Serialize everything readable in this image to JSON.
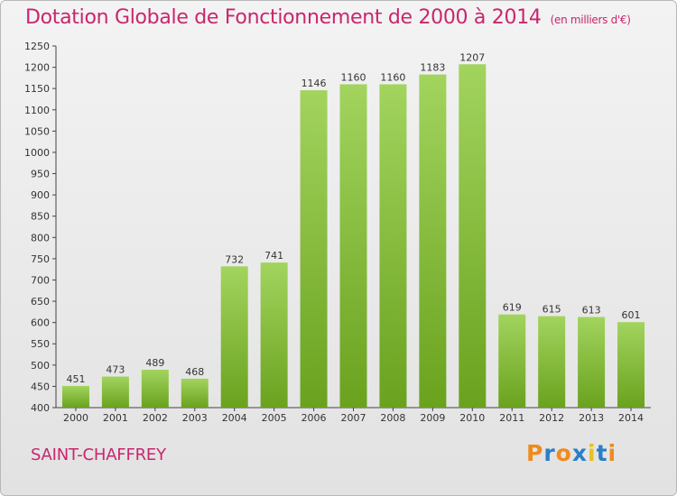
{
  "header": {
    "title": "Dotation Globale de Fonctionnement de 2000 à 2014",
    "unit": "(en milliers d'€)"
  },
  "footer": {
    "place": "SAINT-CHAFFREY",
    "brand_letters": [
      "P",
      "r",
      "o",
      "x",
      "i",
      "t",
      "i"
    ]
  },
  "colors": {
    "title": "#c8266e",
    "bar_light": "#a2d45e",
    "bar_dark": "#6aa21e",
    "brand_letters": [
      "#f08a1c",
      "#2a7fc6",
      "#f08a1c",
      "#2a7fc6",
      "#e8c21c",
      "#2a7fc6",
      "#f08a1c"
    ]
  },
  "chart_data": {
    "type": "bar",
    "title": "Dotation Globale de Fonctionnement de 2000 à 2014",
    "subtitle": "(en milliers d'€)",
    "categories": [
      "2000",
      "2001",
      "2002",
      "2003",
      "2004",
      "2005",
      "2006",
      "2007",
      "2008",
      "2009",
      "2010",
      "2011",
      "2012",
      "2013",
      "2014"
    ],
    "values": [
      451,
      473,
      489,
      468,
      732,
      741,
      1146,
      1160,
      1160,
      1183,
      1207,
      619,
      615,
      613,
      601
    ],
    "xlabel": "",
    "ylabel": "",
    "ylim": [
      400,
      1250
    ],
    "yticks": [
      400,
      450,
      500,
      550,
      600,
      650,
      700,
      750,
      800,
      850,
      900,
      950,
      1000,
      1050,
      1100,
      1150,
      1200,
      1250
    ],
    "grid": false,
    "data_labels": true
  }
}
